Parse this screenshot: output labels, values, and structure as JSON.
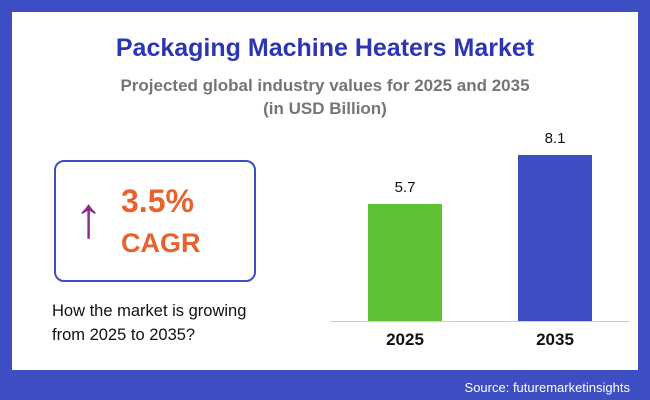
{
  "header": {
    "title": "Packaging Machine Heaters Market",
    "subtitle_line1": "Projected global industry values for 2025 and 2035",
    "subtitle_line2": "(in USD Billion)"
  },
  "cagr": {
    "value": "3.5%",
    "label": "CAGR",
    "arrow": "↑",
    "description_line1": "How the market is growing",
    "description_line2": "from 2025 to 2035?"
  },
  "chart_data": {
    "type": "bar",
    "title": "Packaging Machine Heaters Market",
    "subtitle": "Projected global industry values for 2025 and 2035 (in USD Billion)",
    "categories": [
      "2025",
      "2035"
    ],
    "values": [
      5.7,
      8.1
    ],
    "bar_colors": [
      "#5CC234",
      "#3D4EC2"
    ],
    "ylim": [
      0,
      9
    ],
    "grid": false,
    "legend": "none",
    "unit": "USD Billion"
  },
  "footer": {
    "source": "Source: futuremarketinsights"
  },
  "colors": {
    "frame_blue": "#3D4EC2",
    "title_blue": "#2B35B5",
    "subtitle_gray": "#757575",
    "accent_orange": "#E8622D",
    "arrow_purple": "#8A2B8A",
    "bar_green": "#5CC234",
    "bar_blue": "#3D4EC2"
  }
}
